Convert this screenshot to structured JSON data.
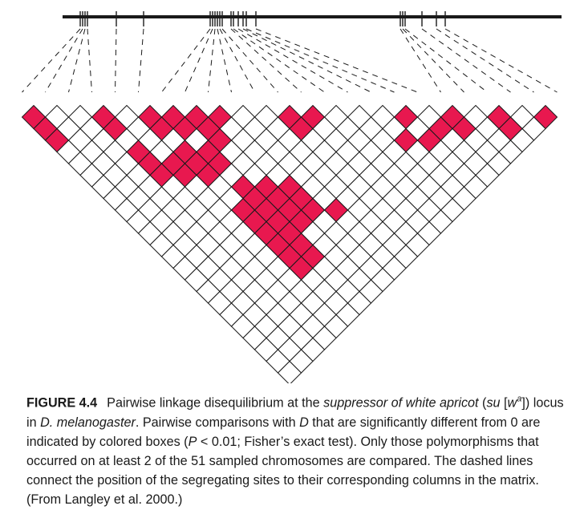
{
  "figure": {
    "colors": {
      "significant": "#e8184f",
      "empty": "#ffffff",
      "line": "#1a1a1a"
    },
    "site_count": 24,
    "significant_cells": [
      [
        0,
        0
      ],
      [
        3,
        0
      ],
      [
        5,
        0
      ],
      [
        6,
        0
      ],
      [
        7,
        0
      ],
      [
        8,
        0
      ],
      [
        11,
        0
      ],
      [
        12,
        0
      ],
      [
        16,
        0
      ],
      [
        18,
        0
      ],
      [
        20,
        0
      ],
      [
        22,
        0
      ],
      [
        0,
        1
      ],
      [
        3,
        1
      ],
      [
        5,
        1
      ],
      [
        6,
        1
      ],
      [
        7,
        1
      ],
      [
        11,
        1
      ],
      [
        17,
        1
      ],
      [
        18,
        1
      ],
      [
        20,
        1
      ],
      [
        0,
        2
      ],
      [
        7,
        2
      ],
      [
        15,
        2
      ],
      [
        16,
        2
      ],
      [
        3,
        3
      ],
      [
        5,
        3
      ],
      [
        6,
        3
      ],
      [
        3,
        4
      ],
      [
        4,
        4
      ],
      [
        5,
        4
      ],
      [
        6,
        4
      ],
      [
        3,
        5
      ],
      [
        4,
        5
      ],
      [
        5,
        5
      ],
      [
        6,
        6
      ],
      [
        7,
        6
      ],
      [
        8,
        6
      ],
      [
        6,
        7
      ],
      [
        7,
        7
      ],
      [
        8,
        7
      ],
      [
        5,
        8
      ],
      [
        6,
        8
      ],
      [
        7,
        8
      ],
      [
        8,
        8
      ],
      [
        9,
        8
      ],
      [
        5,
        9
      ],
      [
        6,
        9
      ],
      [
        7,
        9
      ],
      [
        5,
        10
      ],
      [
        6,
        10
      ],
      [
        5,
        11
      ],
      [
        6,
        11
      ],
      [
        5,
        12
      ],
      [
        6,
        12
      ],
      [
        5,
        13
      ]
    ]
  },
  "caption": {
    "label": "FIGURE 4.4",
    "segments": [
      {
        "text": "Pairwise linkage disequilibrium at the ",
        "italic": false
      },
      {
        "text": "suppressor of white apricot",
        "italic": true
      },
      {
        "text": " (",
        "italic": false
      },
      {
        "text": "su",
        "italic": true
      },
      {
        "text": " [",
        "italic": false
      },
      {
        "text": "w",
        "italic": true
      },
      {
        "text": "a",
        "italic": true,
        "sup": true
      },
      {
        "text": "]) locus in ",
        "italic": false
      },
      {
        "text": "D. melanogaster",
        "italic": true
      },
      {
        "text": ". Pairwise comparisons with ",
        "italic": false
      },
      {
        "text": "D",
        "italic": true
      },
      {
        "text": " that are significantly different from 0 are indicated by colored boxes (",
        "italic": false
      },
      {
        "text": "P",
        "italic": true
      },
      {
        "text": " < 0.01; Fisher’s exact test). Only those polymorphisms that occurred on at least 2 of the 51 sampled chromosomes are compared. The dashed lines connect the position of the segregating sites to their corresponding columns in the matrix. (From Langley et al. 2000.)",
        "italic": false
      }
    ]
  }
}
